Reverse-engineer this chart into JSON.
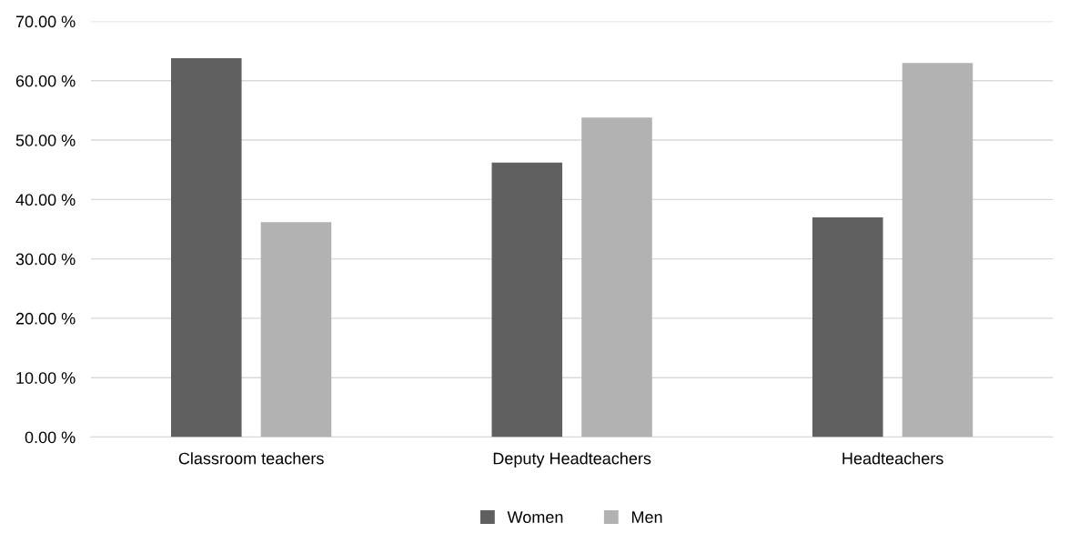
{
  "chart_data": {
    "type": "bar",
    "categories": [
      "Classroom teachers",
      "Deputy Headteachers",
      "Headteachers"
    ],
    "series": [
      {
        "name": "Women",
        "color": "#606060",
        "values": [
          63.8,
          46.2,
          37.0
        ]
      },
      {
        "name": "Men",
        "color": "#b2b2b2",
        "values": [
          36.2,
          53.8,
          63.0
        ]
      }
    ],
    "ylim": [
      0,
      70
    ],
    "yticks": [
      {
        "value": 0,
        "label": "0.00 %"
      },
      {
        "value": 10,
        "label": "10.00 %"
      },
      {
        "value": 20,
        "label": "20.00 %"
      },
      {
        "value": 30,
        "label": "30.00 %"
      },
      {
        "value": 40,
        "label": "40.00 %"
      },
      {
        "value": 50,
        "label": "50.00 %"
      },
      {
        "value": 60,
        "label": "60.00 %"
      },
      {
        "value": 70,
        "label": "70.00 %"
      }
    ],
    "grid": "y",
    "legend": "bottom"
  }
}
